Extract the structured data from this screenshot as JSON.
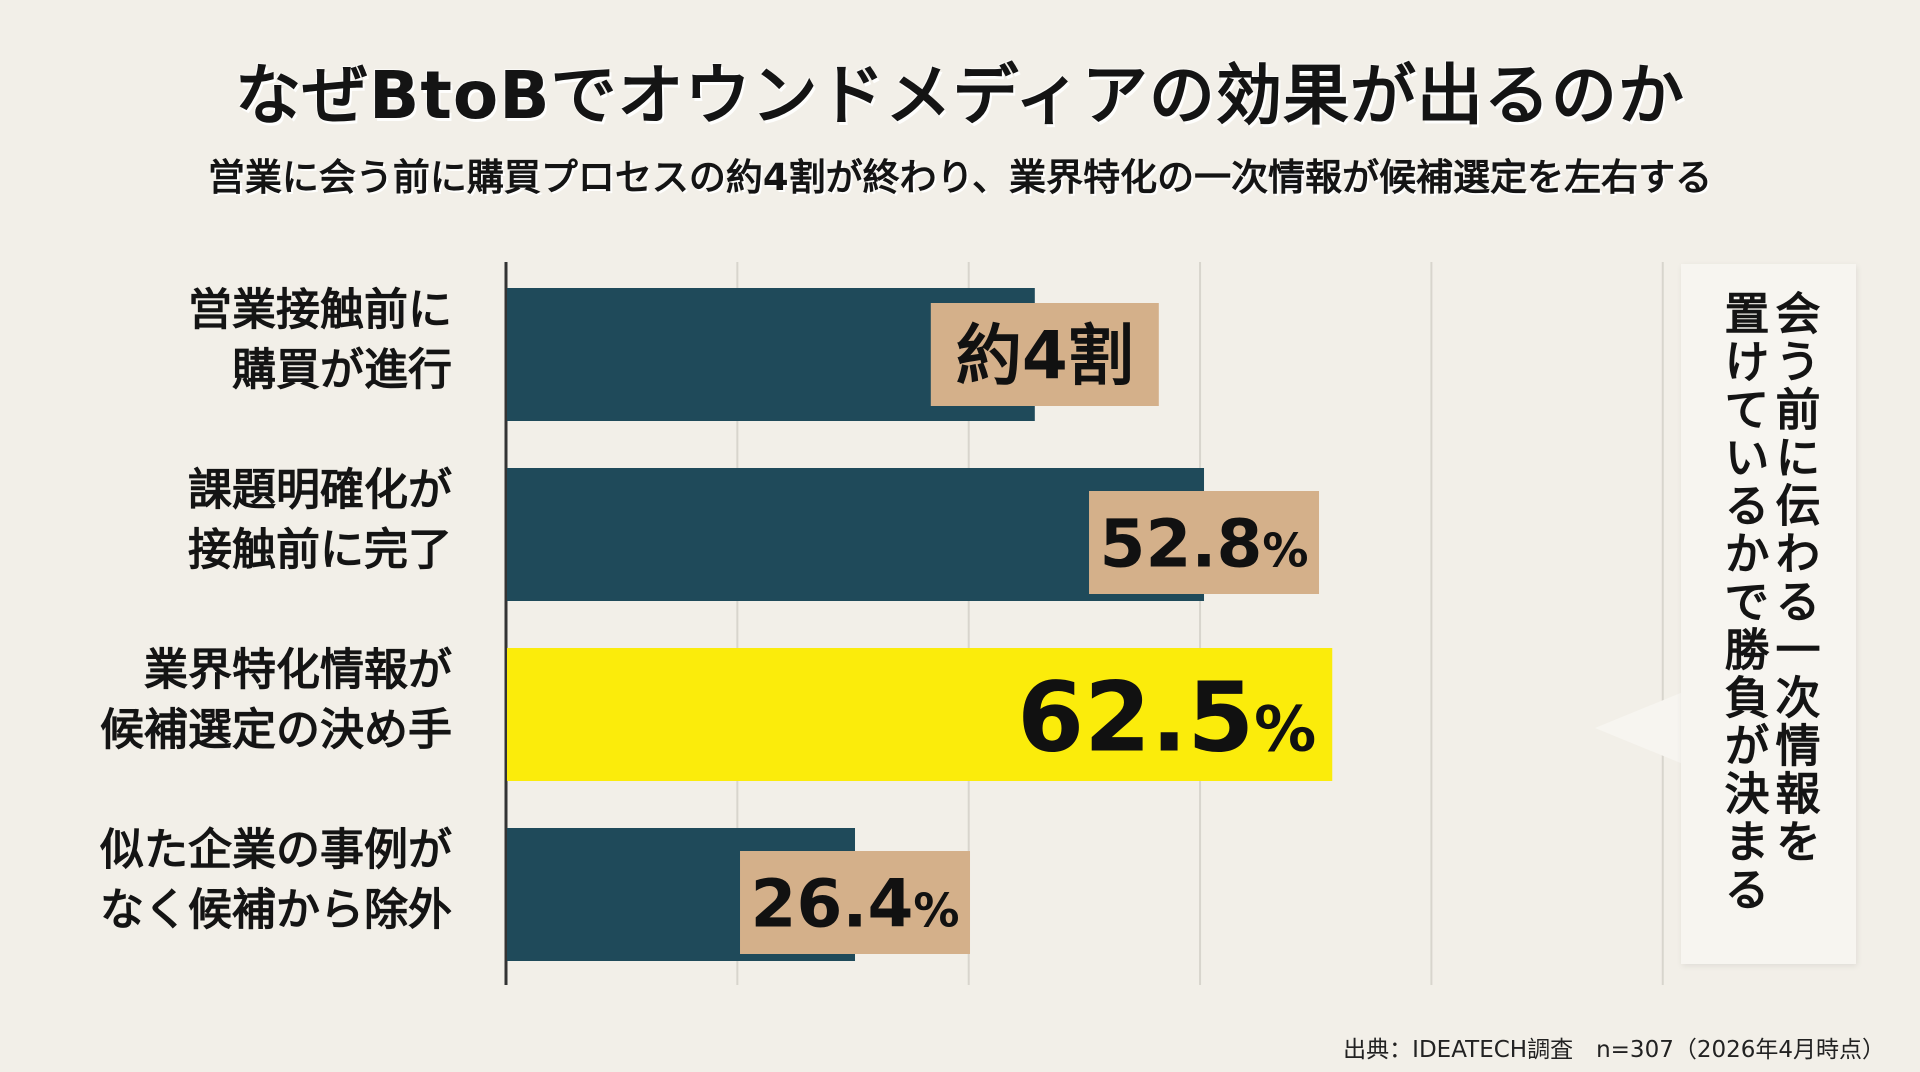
{
  "title": "なぜBtoBでオウンドメディアの効果が出るのか",
  "subtitle": "営業に会う前に購買プロセスの約4割が終わり、業界特化の一次情報が候補選定を左右する",
  "chart_data": {
    "type": "bar",
    "orientation": "horizontal",
    "categories": [
      [
        "営業接触前に",
        "購買が進行"
      ],
      [
        "課題明確化が",
        "接触前に完了"
      ],
      [
        "業界特化情報が",
        "候補選定の決め手"
      ],
      [
        "似た企業の事例が",
        "なく候補から除外"
      ]
    ],
    "values": [
      40,
      52.8,
      62.5,
      26.4
    ],
    "value_labels": [
      {
        "main": "約4割",
        "unit": ""
      },
      {
        "main": "52.8",
        "unit": "%"
      },
      {
        "main": "62.5",
        "unit": "%"
      },
      {
        "main": "26.4",
        "unit": "%"
      }
    ],
    "highlight_index": 2,
    "xlim": [
      0,
      100
    ],
    "grid": true,
    "colors": {
      "bar": "#1f4a5a",
      "highlight": "#fbec0b",
      "label_box": "#d4b08a",
      "grid": "#d8d5cd",
      "axis": "#333333"
    }
  },
  "callout": {
    "lines": [
      "会う前に伝わる一次情報を",
      "置けているかで勝負が決まる"
    ]
  },
  "source": "出典：IDEATECH調査　n=307（2026年4月時点）"
}
